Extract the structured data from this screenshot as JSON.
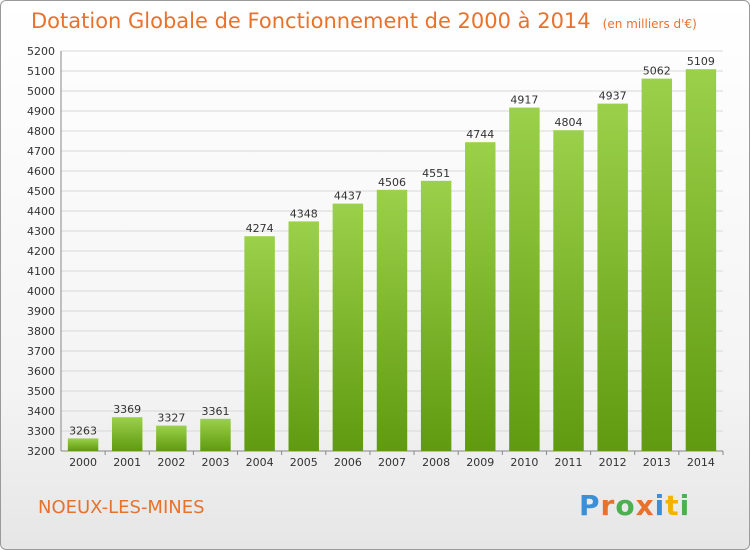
{
  "header": {
    "title": "Dotation Globale de Fonctionnement de 2000 à 2014",
    "unit": "(en milliers d'€)"
  },
  "footer": {
    "place": "NOEUX-LES-MINES",
    "logo": "Proxiti",
    "logo_colors": [
      "#3a8fd8",
      "#e8722c",
      "#4caf50",
      "#e8722c",
      "#3a8fd8",
      "#f0b400",
      "#4caf50"
    ]
  },
  "colors": {
    "accent": "#e8722c",
    "bar_light": "#9bd14a",
    "bar_dark": "#5f9a10",
    "grid": "#d8d8d8"
  },
  "chart_data": {
    "type": "bar",
    "title": "Dotation Globale de Fonctionnement de 2000 à 2014",
    "subtitle": "(en milliers d'€)",
    "categories": [
      "2000",
      "2001",
      "2002",
      "2003",
      "2004",
      "2005",
      "2006",
      "2007",
      "2008",
      "2009",
      "2010",
      "2011",
      "2012",
      "2013",
      "2014"
    ],
    "values": [
      3263,
      3369,
      3327,
      3361,
      4274,
      4348,
      4437,
      4506,
      4551,
      4744,
      4917,
      4804,
      4937,
      5062,
      5109
    ],
    "ylim": [
      3200,
      5200
    ],
    "ytick_step": 100,
    "grid": true,
    "data_labels": true
  }
}
